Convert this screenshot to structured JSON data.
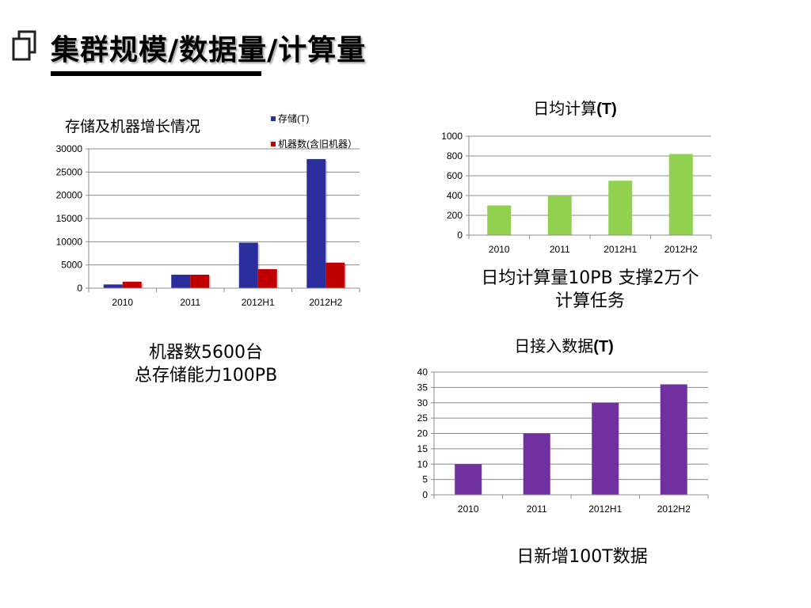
{
  "slide": {
    "title": "集群规模/数据量/计算量"
  },
  "captions": {
    "storage_line1": "机器数5600台",
    "storage_line2": "总存储能力100PB",
    "compute_line1": "日均计算量10PB  支撑2万个",
    "compute_line2": "计算任务",
    "ingest": "日新增100T数据"
  },
  "chart_data": [
    {
      "id": "storage",
      "type": "bar",
      "title": "存储及机器增长情况",
      "xlabel": "",
      "ylabel": "",
      "categories": [
        "2010",
        "2011",
        "2012H1",
        "2012H2"
      ],
      "series": [
        {
          "name": "存储(T)",
          "color": "#2B2F9E",
          "values": [
            800,
            2900,
            9800,
            27800
          ]
        },
        {
          "name": "机器数(含旧机器）",
          "color": "#C00000",
          "values": [
            1400,
            2900,
            4100,
            5500
          ]
        }
      ],
      "ylim": [
        0,
        30000
      ],
      "yticks": [
        0,
        5000,
        10000,
        15000,
        20000,
        25000,
        30000
      ],
      "legend": "top-right",
      "grid": true
    },
    {
      "id": "compute",
      "type": "bar",
      "title": "日均计算(T)",
      "xlabel": "",
      "ylabel": "",
      "categories": [
        "2010",
        "2011",
        "2012H1",
        "2012H2"
      ],
      "series": [
        {
          "color": "#92D050",
          "values": [
            300,
            400,
            550,
            820
          ]
        }
      ],
      "ylim": [
        0,
        1000
      ],
      "yticks": [
        0,
        200,
        400,
        600,
        800,
        1000
      ],
      "legend": "none",
      "grid": true
    },
    {
      "id": "ingest",
      "type": "bar",
      "title": "日接入数据(T)",
      "xlabel": "",
      "ylabel": "",
      "categories": [
        "2010",
        "2011",
        "2012H1",
        "2012H2"
      ],
      "series": [
        {
          "color": "#7030A0",
          "values": [
            10,
            20,
            30,
            36
          ]
        }
      ],
      "ylim": [
        0,
        40
      ],
      "yticks": [
        0,
        5,
        10,
        15,
        20,
        25,
        30,
        35,
        40
      ],
      "legend": "none",
      "grid": true
    }
  ]
}
